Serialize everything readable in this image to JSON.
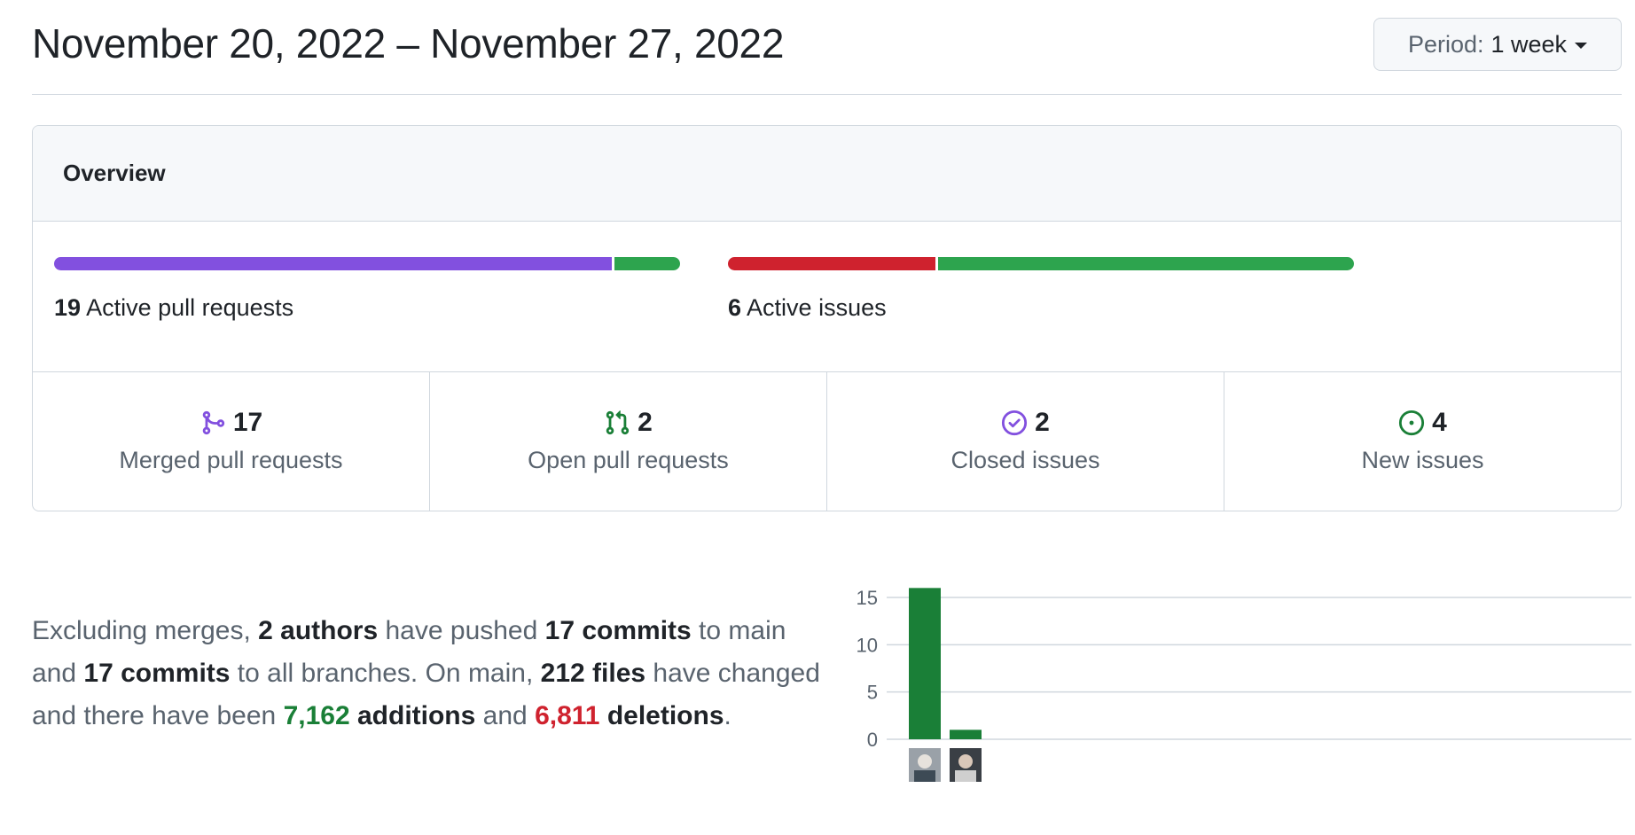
{
  "header": {
    "date_range": "November 20, 2022 – November 27, 2022",
    "period_label": "Period:",
    "period_value": "1 week"
  },
  "overview": {
    "title": "Overview",
    "pull_requests": {
      "count": "19",
      "label": "Active pull requests",
      "segments": [
        {
          "name": "merged",
          "value": 17,
          "color": "#8250df"
        },
        {
          "name": "open",
          "value": 2,
          "color": "#2da44e"
        }
      ]
    },
    "issues": {
      "count": "6",
      "label": "Active issues",
      "segments": [
        {
          "name": "closed",
          "value": 2,
          "color": "#cf222e"
        },
        {
          "name": "new",
          "value": 4,
          "color": "#2da44e"
        }
      ]
    },
    "stats": [
      {
        "value": "17",
        "label": "Merged pull requests",
        "icon": "git-merge-icon",
        "color": "#8250df"
      },
      {
        "value": "2",
        "label": "Open pull requests",
        "icon": "git-pull-request-icon",
        "color": "#1a7f37"
      },
      {
        "value": "2",
        "label": "Closed issues",
        "icon": "issue-closed-icon",
        "color": "#8250df"
      },
      {
        "value": "4",
        "label": "New issues",
        "icon": "issue-opened-icon",
        "color": "#1a7f37"
      }
    ]
  },
  "summary": {
    "t1": "Excluding merges, ",
    "authors": "2 authors",
    "t2": " have pushed ",
    "commits_main": "17 commits",
    "t3": " to main and ",
    "commits_all": "17 commits",
    "t4": " to all branches. On main, ",
    "files": "212 files",
    "t5": " have changed and there have been ",
    "additions_num": "7,162",
    "additions_word": " additions",
    "t6": " and ",
    "deletions_num": "6,811",
    "deletions_word": " deletions",
    "t7": "."
  },
  "chart_data": {
    "type": "bar",
    "categories": [
      "author-1",
      "author-2"
    ],
    "values": [
      16,
      1
    ],
    "ylim": [
      0,
      15
    ],
    "yticks": [
      0,
      5,
      10,
      15
    ],
    "grid": true,
    "bar_color": "#1a7f37"
  }
}
